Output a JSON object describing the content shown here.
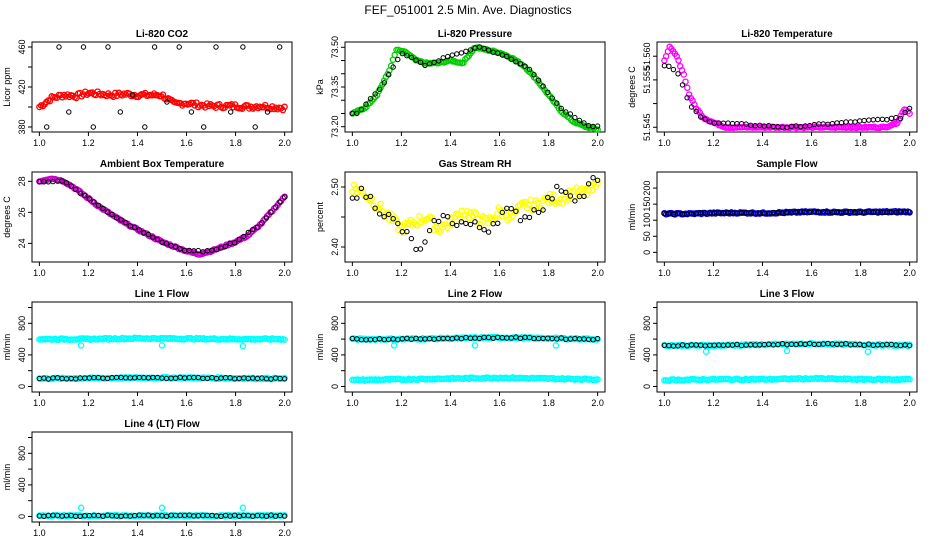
{
  "figure": {
    "title": "FEF_051001  2.5 Min. Ave. Diagnostics",
    "x_tick_labels": [
      "1.0",
      "1.2",
      "1.4",
      "1.6",
      "1.8",
      "2.0"
    ]
  },
  "colors": {
    "co2": "#ff0000",
    "pressure": "#00cc00",
    "temperature": "#ff00ff",
    "ambient": "#cc00cc",
    "rh": "#ffff00",
    "sample_flow": "#0000cc",
    "line_flow": "#00ffff",
    "overlay": "#000000"
  },
  "chart_data": [
    {
      "id": "co2",
      "type": "scatter",
      "title": "Li-820 CO2",
      "ylabel": "Licor ppm",
      "xlim": [
        1.0,
        2.0
      ],
      "ylim": [
        375,
        465
      ],
      "y_ticks": [
        380,
        400,
        420,
        440,
        460
      ],
      "y_tick_labels": [
        "380",
        "",
        "420",
        "",
        "460"
      ],
      "series": [
        {
          "name": "CO2 (color)",
          "color": "#ff0000",
          "x": [
            1.0,
            1.05,
            1.1,
            1.15,
            1.2,
            1.25,
            1.3,
            1.35,
            1.4,
            1.45,
            1.5,
            1.55,
            1.6,
            1.65,
            1.7,
            1.75,
            1.8,
            1.85,
            1.9,
            1.95,
            2.0
          ],
          "y": [
            400,
            409,
            412,
            411,
            414,
            413,
            412,
            413,
            412,
            412,
            412,
            403,
            404,
            402,
            401,
            401,
            401,
            400,
            401,
            400,
            399
          ]
        },
        {
          "name": "CO2 (overlay)",
          "color": "#000000",
          "x": [
            1.03,
            1.08,
            1.12,
            1.18,
            1.22,
            1.28,
            1.33,
            1.38,
            1.43,
            1.47,
            1.52,
            1.57,
            1.62,
            1.67,
            1.72,
            1.78,
            1.83,
            1.88,
            1.93,
            1.98
          ],
          "y": [
            380,
            460,
            395,
            460,
            380,
            460,
            395,
            412,
            380,
            460,
            405,
            460,
            395,
            380,
            460,
            395,
            460,
            380,
            395,
            460
          ]
        }
      ]
    },
    {
      "id": "pressure",
      "type": "scatter",
      "title": "Li-820 Pressure",
      "ylabel": "kPa",
      "xlim": [
        1.0,
        2.0
      ],
      "ylim": [
        73.18,
        73.52
      ],
      "y_ticks": [
        73.2,
        73.25,
        73.3,
        73.35,
        73.4,
        73.45,
        73.5
      ],
      "y_tick_labels": [
        "73.20",
        "",
        "",
        "73.35",
        "",
        "",
        "73.50"
      ],
      "series": [
        {
          "name": "Pressure (color)",
          "color": "#00cc00",
          "x": [
            1.0,
            1.05,
            1.1,
            1.15,
            1.18,
            1.22,
            1.26,
            1.3,
            1.35,
            1.4,
            1.45,
            1.5,
            1.55,
            1.6,
            1.65,
            1.7,
            1.75,
            1.8,
            1.85,
            1.9,
            1.95,
            2.0
          ],
          "y": [
            73.25,
            73.27,
            73.32,
            73.41,
            73.49,
            73.48,
            73.45,
            73.44,
            73.44,
            73.45,
            73.44,
            73.5,
            73.49,
            73.48,
            73.46,
            73.43,
            73.38,
            73.32,
            73.26,
            73.22,
            73.2,
            73.19
          ]
        },
        {
          "name": "Pressure (overlay)",
          "color": "#000000",
          "x": [
            1.02,
            1.12,
            1.2,
            1.3,
            1.4,
            1.52,
            1.62,
            1.72,
            1.85,
            1.97
          ],
          "y": [
            73.25,
            73.35,
            73.48,
            73.43,
            73.47,
            73.5,
            73.47,
            73.42,
            73.27,
            73.2
          ]
        }
      ]
    },
    {
      "id": "temperature",
      "type": "scatter",
      "title": "Li-820 Temperature",
      "ylabel": "degrees C",
      "xlim": [
        1.0,
        2.0
      ],
      "ylim": [
        51.544,
        51.563
      ],
      "y_ticks": [
        51.545,
        51.55,
        51.555,
        51.56
      ],
      "y_tick_labels": [
        "51.545",
        "",
        "51.555",
        "51.560"
      ],
      "series": [
        {
          "name": "Temperature (color)",
          "color": "#ff00ff",
          "x": [
            1.0,
            1.02,
            1.05,
            1.08,
            1.1,
            1.13,
            1.16,
            1.2,
            1.25,
            1.3,
            1.4,
            1.5,
            1.6,
            1.7,
            1.8,
            1.9,
            1.95,
            1.98,
            2.0
          ],
          "y": [
            51.559,
            51.562,
            51.56,
            51.556,
            51.552,
            51.549,
            51.547,
            51.546,
            51.545,
            51.545,
            51.545,
            51.545,
            51.545,
            51.545,
            51.545,
            51.545,
            51.546,
            51.549,
            51.548
          ]
        },
        {
          "name": "Temperature (overlay)",
          "color": "#000000",
          "x": [
            1.02,
            1.06,
            1.1,
            1.15,
            1.2,
            1.5,
            1.97,
            1.99
          ],
          "y": [
            51.558,
            51.556,
            51.55,
            51.547,
            51.546,
            51.545,
            51.547,
            51.549
          ]
        }
      ]
    },
    {
      "id": "ambient",
      "type": "scatter",
      "title": "Ambient Box Temperature",
      "ylabel": "degrees C",
      "xlim": [
        1.0,
        2.0
      ],
      "ylim": [
        22.8,
        28.6
      ],
      "y_ticks": [
        24,
        26,
        28
      ],
      "y_tick_labels": [
        "24",
        "26",
        "28"
      ],
      "series": [
        {
          "name": "Ambient (color)",
          "color": "#cc00cc",
          "x": [
            1.0,
            1.05,
            1.1,
            1.15,
            1.2,
            1.25,
            1.3,
            1.35,
            1.4,
            1.45,
            1.5,
            1.55,
            1.6,
            1.65,
            1.7,
            1.75,
            1.8,
            1.85,
            1.9,
            1.95,
            2.0
          ],
          "y": [
            28.0,
            28.2,
            28.0,
            27.5,
            26.9,
            26.3,
            25.8,
            25.3,
            24.9,
            24.5,
            24.1,
            23.8,
            23.5,
            23.3,
            23.5,
            23.8,
            24.1,
            24.5,
            25.2,
            26.1,
            27.0
          ]
        },
        {
          "name": "Ambient (overlay)",
          "color": "#000000",
          "x": [
            1.0,
            1.1,
            1.2,
            1.3,
            1.4,
            1.5,
            1.6,
            1.7,
            1.8,
            1.9,
            2.0
          ],
          "y": [
            28.0,
            28.0,
            26.9,
            25.8,
            24.9,
            24.1,
            23.5,
            23.5,
            24.1,
            25.2,
            27.0
          ]
        }
      ]
    },
    {
      "id": "rh",
      "type": "scatter",
      "title": "Gas Stream RH",
      "ylabel": "percent",
      "xlim": [
        1.0,
        2.0
      ],
      "ylim": [
        2.375,
        2.525
      ],
      "y_ticks": [
        2.4,
        2.45,
        2.5
      ],
      "y_tick_labels": [
        "2.40",
        "",
        "2.50"
      ],
      "series": [
        {
          "name": "RH (color)",
          "color": "#ffff00",
          "x": [
            1.0,
            1.05,
            1.1,
            1.15,
            1.2,
            1.25,
            1.3,
            1.35,
            1.4,
            1.45,
            1.5,
            1.55,
            1.6,
            1.65,
            1.7,
            1.75,
            1.8,
            1.85,
            1.9,
            1.95,
            2.0
          ],
          "y": [
            2.5,
            2.49,
            2.47,
            2.45,
            2.43,
            2.44,
            2.45,
            2.43,
            2.44,
            2.46,
            2.45,
            2.44,
            2.46,
            2.45,
            2.47,
            2.47,
            2.48,
            2.48,
            2.49,
            2.49,
            2.5
          ]
        },
        {
          "name": "RH (overlay)",
          "color": "#000000",
          "x": [
            1.05,
            1.12,
            1.2,
            1.28,
            1.35,
            1.45,
            1.55,
            1.62,
            1.7,
            1.78,
            1.85,
            1.93,
            1.98
          ],
          "y": [
            2.49,
            2.46,
            2.43,
            2.39,
            2.45,
            2.44,
            2.43,
            2.46,
            2.45,
            2.47,
            2.5,
            2.48,
            2.51
          ]
        }
      ]
    },
    {
      "id": "sample_flow",
      "type": "scatter",
      "title": "Sample Flow",
      "ylabel": "ml/min",
      "xlim": [
        1.0,
        2.0
      ],
      "ylim": [
        -30,
        250
      ],
      "y_ticks": [
        0,
        50,
        100,
        150,
        200
      ],
      "y_tick_labels": [
        "0",
        "50",
        "100",
        "150",
        "200"
      ],
      "series": [
        {
          "name": "Sample flow (color)",
          "color": "#0000cc",
          "x": [
            1.0,
            1.1,
            1.2,
            1.3,
            1.4,
            1.5,
            1.6,
            1.7,
            1.8,
            1.9,
            2.0
          ],
          "y": [
            120,
            120,
            122,
            123,
            122,
            124,
            126,
            125,
            125,
            126,
            126
          ]
        },
        {
          "name": "Sample flow (overlay)",
          "color": "#000000",
          "x": [
            1.0,
            1.2,
            1.4,
            1.6,
            1.8,
            2.0
          ],
          "y": [
            120,
            122,
            122,
            126,
            125,
            126
          ]
        }
      ]
    },
    {
      "id": "line1",
      "type": "scatter",
      "title": "Line 1 Flow",
      "ylabel": "ml/min",
      "xlim": [
        1.0,
        2.0
      ],
      "ylim": [
        -70,
        1070
      ],
      "y_ticks": [
        0,
        200,
        400,
        600,
        800,
        1000
      ],
      "y_tick_labels": [
        "0",
        "",
        "400",
        "",
        "800",
        ""
      ],
      "series": [
        {
          "name": "Line 1 main",
          "color": "#00ffff",
          "x": [
            1.0,
            1.2,
            1.4,
            1.6,
            1.8,
            2.0
          ],
          "y": [
            600,
            600,
            610,
            605,
            600,
            600
          ]
        },
        {
          "name": "Line 1 low",
          "color": "#00ffff",
          "x": [
            1.0,
            1.2,
            1.4,
            1.6,
            1.8,
            2.0
          ],
          "y": [
            100,
            105,
            110,
            110,
            105,
            100
          ]
        },
        {
          "name": "Line 1 spikes",
          "color": "#00ffff",
          "x": [
            1.17,
            1.5,
            1.83
          ],
          "y": [
            520,
            520,
            510
          ]
        },
        {
          "name": "Line 1 overlay",
          "color": "#000000",
          "x": [
            1.0,
            1.2,
            1.4,
            1.6,
            1.8,
            2.0
          ],
          "y": [
            100,
            105,
            110,
            110,
            105,
            100
          ]
        }
      ]
    },
    {
      "id": "line2",
      "type": "scatter",
      "title": "Line 2 Flow",
      "ylabel": "ml/min",
      "xlim": [
        1.0,
        2.0
      ],
      "ylim": [
        -70,
        1070
      ],
      "y_ticks": [
        0,
        200,
        400,
        600,
        800,
        1000
      ],
      "y_tick_labels": [
        "0",
        "",
        "400",
        "",
        "800",
        ""
      ],
      "series": [
        {
          "name": "Line 2 main",
          "color": "#00ffff",
          "x": [
            1.0,
            1.2,
            1.4,
            1.6,
            1.8,
            2.0
          ],
          "y": [
            600,
            600,
            610,
            620,
            610,
            600
          ]
        },
        {
          "name": "Line 2 low",
          "color": "#00ffff",
          "x": [
            1.0,
            1.2,
            1.4,
            1.6,
            1.8,
            2.0
          ],
          "y": [
            80,
            90,
            100,
            110,
            100,
            90
          ]
        },
        {
          "name": "Line 2 spikes",
          "color": "#00ffff",
          "x": [
            1.17,
            1.5,
            1.83
          ],
          "y": [
            520,
            520,
            520
          ]
        },
        {
          "name": "Line 2 overlay",
          "color": "#000000",
          "x": [
            1.0,
            1.2,
            1.4,
            1.6,
            1.8,
            2.0
          ],
          "y": [
            600,
            600,
            610,
            620,
            610,
            600
          ]
        }
      ]
    },
    {
      "id": "line3",
      "type": "scatter",
      "title": "Line 3 Flow",
      "ylabel": "ml/min",
      "xlim": [
        1.0,
        2.0
      ],
      "ylim": [
        -70,
        1070
      ],
      "y_ticks": [
        0,
        200,
        400,
        600,
        800,
        1000
      ],
      "y_tick_labels": [
        "0",
        "",
        "400",
        "",
        "800",
        ""
      ],
      "series": [
        {
          "name": "Line 3 main",
          "color": "#00ffff",
          "x": [
            1.0,
            1.2,
            1.4,
            1.6,
            1.8,
            2.0
          ],
          "y": [
            520,
            520,
            530,
            540,
            530,
            520
          ]
        },
        {
          "name": "Line 3 low",
          "color": "#00ffff",
          "x": [
            1.0,
            1.2,
            1.4,
            1.6,
            1.8,
            2.0
          ],
          "y": [
            80,
            90,
            90,
            100,
            90,
            90
          ]
        },
        {
          "name": "Line 3 spikes",
          "color": "#00ffff",
          "x": [
            1.17,
            1.5,
            1.83
          ],
          "y": [
            440,
            450,
            440
          ]
        },
        {
          "name": "Line 3 overlay",
          "color": "#000000",
          "x": [
            1.0,
            1.2,
            1.4,
            1.6,
            1.8,
            2.0
          ],
          "y": [
            520,
            520,
            530,
            540,
            530,
            520
          ]
        }
      ]
    },
    {
      "id": "line4",
      "type": "scatter",
      "title": "Line 4 (LT) Flow",
      "ylabel": "ml/min",
      "xlim": [
        1.0,
        2.0
      ],
      "ylim": [
        -70,
        1070
      ],
      "y_ticks": [
        0,
        200,
        400,
        600,
        800,
        1000
      ],
      "y_tick_labels": [
        "0",
        "",
        "400",
        "",
        "800",
        ""
      ],
      "series": [
        {
          "name": "Line 4 main",
          "color": "#00ffff",
          "x": [
            1.0,
            1.2,
            1.4,
            1.6,
            1.8,
            2.0
          ],
          "y": [
            10,
            10,
            10,
            10,
            10,
            10
          ]
        },
        {
          "name": "Line 4 spikes",
          "color": "#00ffff",
          "x": [
            1.17,
            1.5,
            1.83
          ],
          "y": [
            110,
            110,
            110
          ]
        },
        {
          "name": "Line 4 overlay",
          "color": "#000000",
          "x": [
            1.0,
            1.2,
            1.4,
            1.6,
            1.8,
            2.0
          ],
          "y": [
            10,
            10,
            10,
            10,
            10,
            10
          ]
        }
      ]
    }
  ]
}
